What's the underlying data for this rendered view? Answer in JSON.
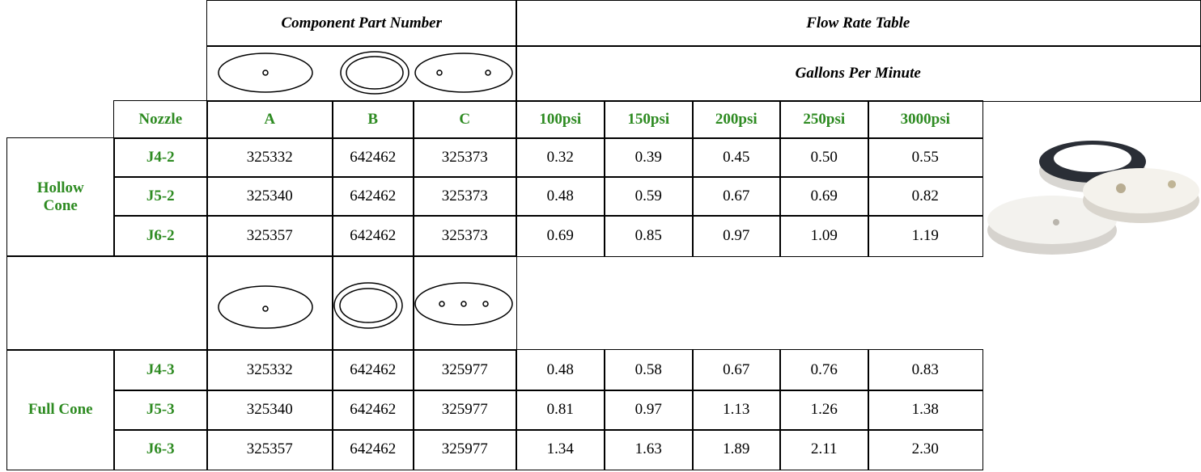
{
  "header": {
    "component_part_number": "Component Part Number",
    "flow_rate_table": "Flow Rate Table",
    "gallons_per_minute": "Gallons Per Minute"
  },
  "columns": {
    "nozzle": "Nozzle",
    "parts": [
      "A",
      "B",
      "C"
    ],
    "pressures": [
      "100psi",
      "150psi",
      "200psi",
      "250psi",
      "3000psi"
    ]
  },
  "groups": [
    {
      "label": "Hollow Cone",
      "rows": [
        {
          "nozzle": "J4-2",
          "parts": [
            "325332",
            "642462",
            "325373"
          ],
          "flows": [
            "0.32",
            "0.39",
            "0.45",
            "0.50",
            "0.55"
          ]
        },
        {
          "nozzle": "J5-2",
          "parts": [
            "325340",
            "642462",
            "325373"
          ],
          "flows": [
            "0.48",
            "0.59",
            "0.67",
            "0.69",
            "0.82"
          ]
        },
        {
          "nozzle": "J6-2",
          "parts": [
            "325357",
            "642462",
            "325373"
          ],
          "flows": [
            "0.69",
            "0.85",
            "0.97",
            "1.09",
            "1.19"
          ]
        }
      ]
    },
    {
      "label": "Full Cone",
      "rows": [
        {
          "nozzle": "J4-3",
          "parts": [
            "325332",
            "642462",
            "325977"
          ],
          "flows": [
            "0.48",
            "0.58",
            "0.67",
            "0.76",
            "0.83"
          ]
        },
        {
          "nozzle": "J5-3",
          "parts": [
            "325340",
            "642462",
            "325977"
          ],
          "flows": [
            "0.81",
            "0.97",
            "1.13",
            "1.26",
            "1.38"
          ]
        },
        {
          "nozzle": "J6-3",
          "parts": [
            "325357",
            "642462",
            "325977"
          ],
          "flows": [
            "1.34",
            "1.63",
            "1.89",
            "2.11",
            "2.30"
          ]
        }
      ]
    }
  ]
}
